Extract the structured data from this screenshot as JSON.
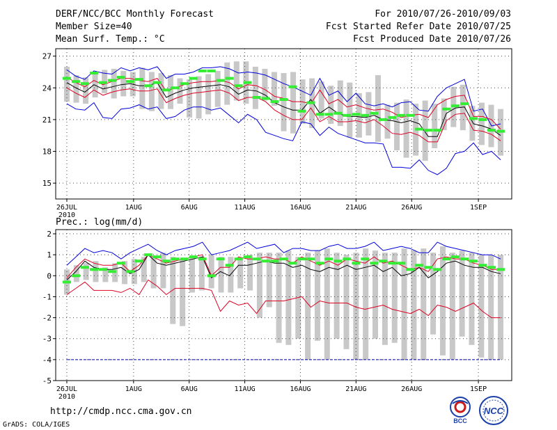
{
  "header": {
    "title": "DERF/NCC/BCC Monthly Forecast",
    "member_size": "Member Size=40",
    "variable": "Mean Surf. Temp.: °C",
    "period": "For 2010/07/26-2010/09/03",
    "started": "Fcst Started Refer Date 2010/07/25",
    "produced": "Fcst Produced Date 2010/07/26"
  },
  "footer": {
    "url": "http://cmdp.ncc.cma.gov.cn",
    "credit": "GrADS: COLA/IGES",
    "logo_left": "BCC",
    "logo_right": "NCC"
  },
  "colors": {
    "ensemble_mean": "#000000",
    "envelope": "#0000dd",
    "std_band": "#dd0022",
    "box": "#c8c8c8",
    "climatology": "#33ee33",
    "zero_line": "#0000aa"
  },
  "chart_data": [
    {
      "type": "line",
      "title": "Mean Surf. Temp.: °C",
      "x_ticks": [
        "26JUL\n2010",
        "1AUG",
        "6AUG",
        "11AUG",
        "16AUG",
        "21AUG",
        "26AUG",
        "1SEP"
      ],
      "x_tick_days": [
        0,
        6,
        11,
        16,
        21,
        26,
        31,
        37
      ],
      "xlim": [
        -1,
        40
      ],
      "ylim": [
        13.5,
        27.7
      ],
      "y_ticks": [
        15,
        18,
        21,
        24,
        27
      ],
      "grid": true,
      "boxes_low": [
        22.7,
        22.6,
        22.5,
        23.1,
        23.5,
        23.0,
        23.2,
        23.2,
        22.0,
        21.8,
        22.0,
        22.0,
        22.5,
        21.2,
        21.1,
        21.5,
        22.2,
        22.4,
        22.8,
        22.5,
        22.0,
        22.8,
        22.3,
        19.9,
        19.7,
        20.6,
        20.2,
        21.1,
        20.6,
        20.4,
        19.3,
        19.3,
        19.5,
        18.9,
        19.2,
        18.1,
        17.4,
        17.6,
        17.1,
        18.3,
        20.0,
        20.3,
        20.0,
        19.0,
        18.6,
        18.4,
        17.6
      ],
      "boxes_high": [
        26.0,
        25.2,
        25.0,
        25.4,
        25.7,
        25.8,
        25.6,
        25.5,
        25.9,
        25.5,
        25.4,
        25.2,
        24.9,
        24.8,
        25.1,
        25.3,
        25.6,
        26.4,
        26.5,
        26.5,
        26.0,
        25.8,
        25.5,
        25.4,
        25.5,
        24.8,
        24.9,
        24.6,
        24.2,
        24.7,
        24.5,
        23.5,
        23.6,
        25.2,
        22.4,
        22.6,
        22.9,
        22.5,
        22.8,
        22.5,
        23.0,
        24.1,
        24.3,
        22.3,
        22.6,
        22.4,
        22.0
      ],
      "series": [
        {
          "name": "Max",
          "values": [
            25.7,
            25.1,
            24.8,
            25.6,
            25.4,
            25.3,
            25.9,
            25.6,
            25.9,
            25.7,
            26.0,
            24.9,
            25.3,
            25.3,
            25.5,
            25.9,
            25.9,
            26.0,
            25.8,
            25.4,
            25.5,
            25.4,
            25.2,
            24.8,
            24.4,
            24.1,
            23.7,
            23.3,
            24.9,
            23.3,
            23.7,
            22.7,
            23.5,
            22.5,
            22.3,
            22.5,
            22.2,
            22.6,
            22.7,
            21.9,
            21.8,
            23.2,
            24.0,
            24.4,
            24.8,
            21.8,
            22.0,
            20.4,
            20.6
          ]
        },
        {
          "name": "Mean+SD",
          "values": [
            25.0,
            24.5,
            24.1,
            24.7,
            24.3,
            24.6,
            24.9,
            24.9,
            24.7,
            24.6,
            24.9,
            23.7,
            24.0,
            24.3,
            24.5,
            24.6,
            24.6,
            24.7,
            24.5,
            23.9,
            24.3,
            24.2,
            23.8,
            23.2,
            23.0,
            22.7,
            22.7,
            22.5,
            23.8,
            22.5,
            22.9,
            22.2,
            22.4,
            22.1,
            21.9,
            22.0,
            21.7,
            21.2,
            21.4,
            21.5,
            21.2,
            22.4,
            22.9,
            23.2,
            23.3,
            21.3,
            21.3,
            21.0,
            20.1
          ]
        },
        {
          "name": "Mean",
          "values": [
            24.5,
            24.0,
            23.6,
            24.3,
            23.9,
            24.1,
            24.3,
            24.4,
            24.2,
            24.2,
            24.5,
            23.1,
            23.5,
            23.8,
            24.0,
            24.1,
            24.2,
            24.3,
            24.1,
            23.4,
            23.8,
            23.7,
            23.3,
            22.6,
            22.2,
            21.9,
            21.9,
            22.9,
            21.6,
            22.2,
            21.6,
            21.3,
            21.3,
            21.2,
            21.4,
            21.0,
            20.9,
            20.7,
            20.9,
            20.6,
            19.4,
            19.4,
            21.6,
            22.1,
            22.2,
            20.6,
            20.4,
            20.1,
            19.5
          ]
        },
        {
          "name": "Mean-SD",
          "values": [
            24.0,
            23.5,
            23.1,
            23.8,
            23.3,
            23.6,
            23.8,
            23.9,
            23.7,
            23.7,
            23.9,
            22.6,
            23.0,
            23.3,
            23.5,
            23.6,
            23.7,
            23.8,
            23.5,
            22.8,
            23.1,
            23.1,
            22.7,
            21.9,
            21.4,
            21.0,
            21.0,
            22.1,
            20.8,
            21.3,
            20.8,
            20.8,
            20.9,
            20.7,
            21.0,
            20.4,
            19.7,
            19.6,
            19.8,
            19.5,
            18.9,
            18.9,
            20.9,
            21.5,
            21.6,
            20.0,
            19.9,
            19.6,
            19.0
          ]
        },
        {
          "name": "Min",
          "values": [
            22.5,
            22.0,
            21.9,
            22.6,
            21.2,
            21.1,
            22.0,
            22.1,
            22.4,
            22.0,
            22.2,
            21.1,
            21.3,
            21.9,
            22.2,
            22.2,
            21.9,
            22.1,
            21.4,
            20.7,
            21.5,
            21.0,
            19.8,
            19.5,
            19.2,
            19.0,
            20.8,
            20.6,
            19.5,
            20.3,
            19.7,
            19.4,
            19.1,
            18.8,
            18.8,
            18.7,
            16.5,
            16.5,
            16.4,
            17.2,
            16.2,
            15.8,
            16.4,
            17.8,
            18.0,
            18.8,
            17.7,
            18.0,
            17.2
          ]
        },
        {
          "name": "Climatology",
          "values": [
            24.9,
            24.6,
            24.4,
            25.4,
            24.5,
            24.7,
            25.0,
            24.6,
            24.8,
            24.2,
            24.5,
            23.8,
            24.0,
            24.4,
            24.9,
            25.6,
            25.6,
            24.7,
            24.9,
            24.2,
            24.5,
            23.1,
            23.0,
            22.7,
            22.9,
            24.1,
            21.8,
            22.6,
            21.5,
            21.5,
            21.6,
            21.4,
            21.5,
            21.4,
            21.6,
            21.0,
            21.2,
            21.4,
            21.4,
            20.1,
            20.0,
            20.0,
            22.0,
            22.3,
            22.5,
            21.1,
            21.0,
            20.0,
            19.9
          ]
        }
      ]
    },
    {
      "type": "line",
      "title": "Prec.: log(mm/d)",
      "x_ticks": [
        "26JUL\n2010",
        "1AUG",
        "6AUG",
        "11AUG",
        "16AUG",
        "21AUG",
        "26AUG",
        "1SEP"
      ],
      "x_tick_days": [
        0,
        6,
        11,
        16,
        21,
        26,
        31,
        37
      ],
      "xlim": [
        -1,
        40
      ],
      "ylim": [
        -5,
        2.2
      ],
      "y_ticks": [
        -5,
        -4,
        -3,
        -2,
        -1,
        0,
        1,
        2
      ],
      "grid": true,
      "boxes_low": [
        -0.9,
        -0.3,
        -0.2,
        -0.3,
        -0.3,
        -0.3,
        -0.4,
        -0.4,
        -0.3,
        -0.6,
        -0.6,
        -2.3,
        -2.4,
        -0.8,
        -0.7,
        -0.6,
        -0.8,
        -0.8,
        -0.6,
        -0.7,
        -2.0,
        -1.5,
        -3.2,
        -3.3,
        -3.0,
        -4.0,
        -3.1,
        -4.0,
        -3.0,
        -3.5,
        -4.0,
        -4.0,
        -3.0,
        -3.3,
        -3.2,
        -4.0,
        -4.0,
        -4.0,
        -2.8,
        -3.8,
        -4.0,
        -2.9,
        -3.3,
        -3.9,
        -4.0,
        -4.0
      ],
      "boxes_high": [
        0.3,
        0.5,
        0.6,
        0.7,
        0.4,
        0.6,
        0.7,
        0.8,
        0.9,
        0.9,
        1.1,
        0.9,
        0.8,
        0.9,
        0.9,
        1.0,
        0.9,
        0.9,
        0.8,
        1.0,
        1.1,
        1.1,
        1.1,
        1.2,
        0.9,
        1.1,
        1.2,
        1.3,
        1.1,
        1.0,
        1.1,
        1.3,
        1.2,
        1.1,
        1.1,
        1.3,
        1.2,
        1.3,
        1.1,
        1.4,
        1.1,
        1.2,
        1.1,
        1.0,
        1.0,
        1.0
      ],
      "series": [
        {
          "name": "Max",
          "values": [
            0.5,
            0.9,
            1.3,
            1.1,
            1.2,
            1.1,
            0.8,
            1.1,
            1.3,
            1.5,
            1.2,
            1.0,
            1.2,
            1.3,
            1.4,
            1.6,
            1.0,
            1.1,
            1.2,
            1.4,
            1.6,
            1.3,
            1.4,
            1.5,
            1.1,
            1.3,
            1.3,
            1.2,
            1.2,
            1.4,
            1.5,
            1.3,
            1.3,
            1.4,
            1.6,
            1.2,
            1.3,
            1.4,
            1.3,
            1.1,
            1.1,
            1.6,
            1.4,
            1.3,
            1.2,
            1.1,
            1.0,
            1.0,
            0.8
          ]
        },
        {
          "name": "Mean+SD",
          "values": [
            -0.1,
            0.4,
            0.8,
            0.6,
            0.5,
            0.5,
            0.6,
            0.2,
            0.5,
            1.0,
            0.8,
            0.6,
            0.7,
            0.8,
            0.9,
            1.0,
            0.0,
            0.4,
            0.4,
            0.9,
            0.8,
            0.8,
            0.9,
            0.8,
            0.8,
            0.6,
            0.9,
            0.7,
            0.5,
            0.7,
            0.5,
            0.8,
            0.7,
            0.6,
            0.9,
            0.6,
            0.7,
            0.5,
            0.3,
            0.4,
            0.2,
            0.8,
            0.9,
            0.8,
            0.8,
            0.6,
            0.5,
            0.3,
            0.3
          ]
        },
        {
          "name": "Mean",
          "values": [
            -0.2,
            0.2,
            0.7,
            0.4,
            0.3,
            0.3,
            0.4,
            0.1,
            0.3,
            1.0,
            0.6,
            0.5,
            0.6,
            0.7,
            0.8,
            0.9,
            -0.1,
            0.2,
            0.0,
            0.5,
            0.5,
            0.6,
            0.7,
            0.6,
            0.6,
            0.4,
            0.5,
            0.3,
            0.2,
            0.4,
            0.3,
            0.5,
            0.3,
            0.4,
            0.5,
            0.2,
            0.4,
            0.0,
            0.1,
            0.4,
            -0.1,
            0.2,
            0.6,
            0.7,
            0.5,
            0.4,
            0.4,
            0.2,
            0.1
          ]
        },
        {
          "name": "Mean-SD",
          "values": [
            -0.9,
            -0.6,
            -0.3,
            -0.7,
            -0.7,
            -0.7,
            -0.8,
            -0.6,
            -0.9,
            -0.2,
            -0.5,
            -0.9,
            -0.6,
            -0.6,
            -0.6,
            -0.6,
            -0.7,
            -1.7,
            -1.2,
            -1.4,
            -1.3,
            -1.8,
            -1.2,
            -1.2,
            -1.2,
            -1.1,
            -1.0,
            -1.5,
            -1.2,
            -1.3,
            -1.3,
            -1.3,
            -1.5,
            -1.6,
            -1.5,
            -1.4,
            -1.6,
            -1.7,
            -1.8,
            -1.6,
            -1.9,
            -1.4,
            -1.5,
            -1.7,
            -1.5,
            -1.3,
            -1.7,
            -2.0,
            -2.0
          ]
        },
        {
          "name": "Min",
          "values": [
            -4,
            -4,
            -4,
            -4,
            -4,
            -4,
            -4,
            -4,
            -4,
            -4,
            -4,
            -4,
            -4,
            -4,
            -4,
            -4,
            -4,
            -4,
            -4,
            -4,
            -4,
            -4,
            -4,
            -4,
            -4,
            -4,
            -4,
            -4,
            -4,
            -4,
            -4,
            -4,
            -4,
            -4,
            -4,
            -4,
            -4,
            -4,
            -4,
            -4,
            -4,
            -4,
            -4,
            -4,
            -4,
            -4,
            -4,
            -4,
            -4
          ]
        },
        {
          "name": "Climatology",
          "values": [
            -0.3,
            0.0,
            0.4,
            0.3,
            0.3,
            0.2,
            0.6,
            0.2,
            0.7,
            1.0,
            0.9,
            0.7,
            0.8,
            0.8,
            0.9,
            0.8,
            0.0,
            0.8,
            0.5,
            0.8,
            0.9,
            0.8,
            0.7,
            0.7,
            0.8,
            0.6,
            0.8,
            0.8,
            0.6,
            0.8,
            0.7,
            0.8,
            0.6,
            0.8,
            0.6,
            0.7,
            0.6,
            0.6,
            0.3,
            0.5,
            0.4,
            0.3,
            0.8,
            0.9,
            0.8,
            0.7,
            0.5,
            0.4,
            0.3
          ]
        }
      ]
    }
  ]
}
